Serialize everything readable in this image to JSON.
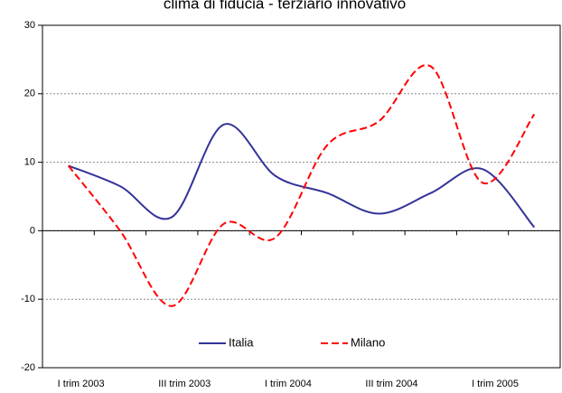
{
  "chart_data": {
    "type": "line",
    "title": "clima di fiducia - terziario innovativo",
    "categories": [
      "I trim 2003",
      null,
      "III trim 2003",
      null,
      "I trim 2004",
      null,
      "III trim 2004",
      null,
      "I trim 2005",
      null
    ],
    "series": [
      {
        "name": "Italia",
        "color": "#333399",
        "dash": false,
        "values": [
          9.5,
          6.5,
          2,
          15.5,
          8,
          5.5,
          2.5,
          5.5,
          9,
          0.5
        ]
      },
      {
        "name": "Milano",
        "color": "#ff0000",
        "dash": true,
        "values": [
          9.5,
          0,
          -11,
          1,
          -1,
          12.5,
          16,
          24,
          7,
          17
        ]
      }
    ],
    "ylim": [
      -20,
      30
    ],
    "yticks": [
      -20,
      -10,
      0,
      10,
      20,
      30
    ],
    "grid": true,
    "legend": "bottom"
  }
}
